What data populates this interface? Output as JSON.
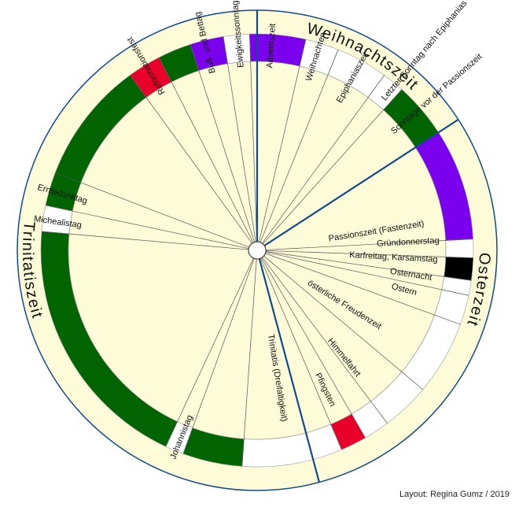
{
  "seasons": [
    {
      "name": "Weihnachtszeit"
    },
    {
      "name": "Osterzeit"
    },
    {
      "name": "Trinitatiszeit"
    }
  ],
  "colors": {
    "background": "#fdfbd8",
    "green": "#006400",
    "violet": "#7b00ee",
    "white": "#ffffff",
    "red": "#e8002a",
    "black": "#000000",
    "line": "#555555",
    "season_line": "#104a8c"
  },
  "segments": [
    {
      "name": "Adventszeit",
      "color": "violet"
    },
    {
      "name": "Weihnachten",
      "color": "white"
    },
    {
      "name": "Epiphaniaszeit",
      "color": "white"
    },
    {
      "name": "Letzter Sonntag nach Epiphanias",
      "color": "white"
    },
    {
      "name": "Sonntage vor der Passionszeit",
      "color": "green"
    },
    {
      "name": "Passionszeit (Fastenzeit)",
      "color": "violet"
    },
    {
      "name": "Gründonnerstag",
      "color": "white"
    },
    {
      "name": "Karfreitag, Karsamstag",
      "color": "black"
    },
    {
      "name": "Osternacht",
      "color": "white"
    },
    {
      "name": "Ostern",
      "color": "white"
    },
    {
      "name": "österliche Freudenzeit",
      "color": "white"
    },
    {
      "name": "Himmelfahrt",
      "color": "white"
    },
    {
      "name": "Pfingsten",
      "color": "red"
    },
    {
      "name": "Trinitatis (Dreifaltigkeit)",
      "color": "white"
    },
    {
      "name": "Johannistag",
      "color": "white"
    },
    {
      "name": "Michealistag",
      "color": "white"
    },
    {
      "name": "Erntedanktag",
      "color": "green"
    },
    {
      "name": "Reformationsfest",
      "color": "red"
    },
    {
      "name": "Buß- und Bettag",
      "color": "violet"
    },
    {
      "name": "Ewigkeitssonntag",
      "color": "white"
    }
  ],
  "credit": "Layout: Regina Gumz / 2019"
}
